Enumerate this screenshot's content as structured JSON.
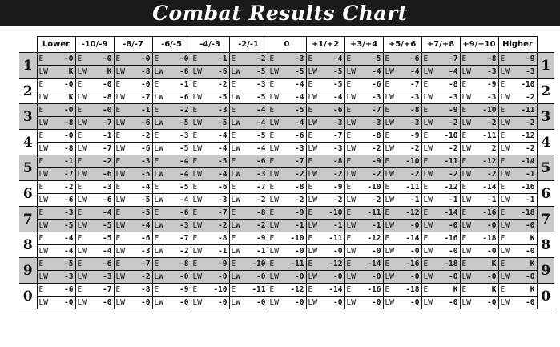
{
  "title": "Combat Results Chart",
  "cell_labels": {
    "enemy": "E",
    "lone_wolf": "LW"
  },
  "columns": [
    "Lower",
    "-10/-9",
    "-8/-7",
    "-6/-5",
    "-4/-3",
    "-2/-1",
    "0",
    "+1/+2",
    "+3/+4",
    "+5/+6",
    "+7/+8",
    "+9/+10",
    "Higher"
  ],
  "rows": [
    {
      "label": "1",
      "e": [
        "-0",
        "-0",
        "-0",
        "-0",
        "-1",
        "-2",
        "-3",
        "-4",
        "-5",
        "-6",
        "-7",
        "-8",
        "-9"
      ],
      "lw": [
        "K",
        "K",
        "-8",
        "-6",
        "-6",
        "-5",
        "-5",
        "-5",
        "-4",
        "-4",
        "-4",
        "-3",
        "-3"
      ]
    },
    {
      "label": "2",
      "e": [
        "-0",
        "-0",
        "-0",
        "-1",
        "-2",
        "-3",
        "-4",
        "-5",
        "-6",
        "-7",
        "-8",
        "-9",
        "-10"
      ],
      "lw": [
        "K",
        "-8",
        "-7",
        "-6",
        "-5",
        "-5",
        "-4",
        "-4",
        "-3",
        "-3",
        "-3",
        "-3",
        "-2"
      ]
    },
    {
      "label": "3",
      "e": [
        "-0",
        "-0",
        "-1",
        "-2",
        "-3",
        "-4",
        "-5",
        "-6",
        "-7",
        "-8",
        "-9",
        "-10",
        "-11"
      ],
      "lw": [
        "-8",
        "-7",
        "-6",
        "-5",
        "-5",
        "-4",
        "-4",
        "-3",
        "-3",
        "-3",
        "-2",
        "-2",
        "-2"
      ]
    },
    {
      "label": "4",
      "e": [
        "-0",
        "-1",
        "-2",
        "-3",
        "-4",
        "-5",
        "-6",
        "-7",
        "-8",
        "-9",
        "-10",
        "-11",
        "-12"
      ],
      "lw": [
        "-8",
        "-7",
        "-6",
        "-5",
        "-4",
        "-4",
        "-3",
        "-3",
        "-2",
        "-2",
        "-2",
        "2",
        "-2"
      ]
    },
    {
      "label": "5",
      "e": [
        "-1",
        "-2",
        "-3",
        "-4",
        "-5",
        "-6",
        "-7",
        "-8",
        "-9",
        "-10",
        "-11",
        "-12",
        "-14"
      ],
      "lw": [
        "-7",
        "-6",
        "-5",
        "-4",
        "-4",
        "-3",
        "-2",
        "-2",
        "-2",
        "-2",
        "-2",
        "-2",
        "-1"
      ]
    },
    {
      "label": "6",
      "e": [
        "-2",
        "-3",
        "-4",
        "-5",
        "-6",
        "-7",
        "-8",
        "-9",
        "-10",
        "-11",
        "-12",
        "-14",
        "-16"
      ],
      "lw": [
        "-6",
        "-6",
        "-5",
        "-4",
        "-3",
        "-2",
        "-2",
        "-2",
        "-2",
        "-1",
        "-1",
        "-1",
        "-1"
      ]
    },
    {
      "label": "7",
      "e": [
        "-3",
        "-4",
        "-5",
        "-6",
        "-7",
        "-8",
        "-9",
        "-10",
        "-11",
        "-12",
        "-14",
        "-16",
        "-18"
      ],
      "lw": [
        "-5",
        "-5",
        "-4",
        "-3",
        "-2",
        "-2",
        "-1",
        "-1",
        "-1",
        "-0",
        "-0",
        "-0",
        "-0"
      ]
    },
    {
      "label": "8",
      "e": [
        "-4",
        "-5",
        "-6",
        "-7",
        "-8",
        "-9",
        "-10",
        "-11",
        "-12",
        "-14",
        "-16",
        "-18",
        "K"
      ],
      "lw": [
        "-4",
        "-4",
        "-3",
        "-2",
        "-1",
        "-1",
        "-0",
        "-0",
        "-0",
        "-0",
        "-0",
        "-0",
        "-0"
      ]
    },
    {
      "label": "9",
      "e": [
        "-5",
        "-6",
        "-7",
        "-8",
        "-9",
        "-10",
        "-11",
        "-12",
        "-14",
        "-16",
        "-18",
        "K",
        "K"
      ],
      "lw": [
        "-3",
        "-3",
        "-2",
        "-0",
        "-0",
        "-0",
        "-0",
        "-0",
        "-0",
        "-0",
        "-0",
        "-0",
        "-0"
      ]
    },
    {
      "label": "0",
      "e": [
        "-6",
        "-7",
        "-8",
        "-9",
        "-10",
        "-11",
        "-12",
        "-14",
        "-16",
        "-18",
        "K",
        "K",
        "K"
      ],
      "lw": [
        "-0",
        "-0",
        "-0",
        "-0",
        "-0",
        "-0",
        "-0",
        "-0",
        "-0",
        "-0",
        "-0",
        "-0",
        "-0"
      ]
    }
  ],
  "colors": {
    "title_bg": "#1a1a1a",
    "title_fg": "#ffffff",
    "shade": "#c8c8c8",
    "grid": "#111111"
  }
}
